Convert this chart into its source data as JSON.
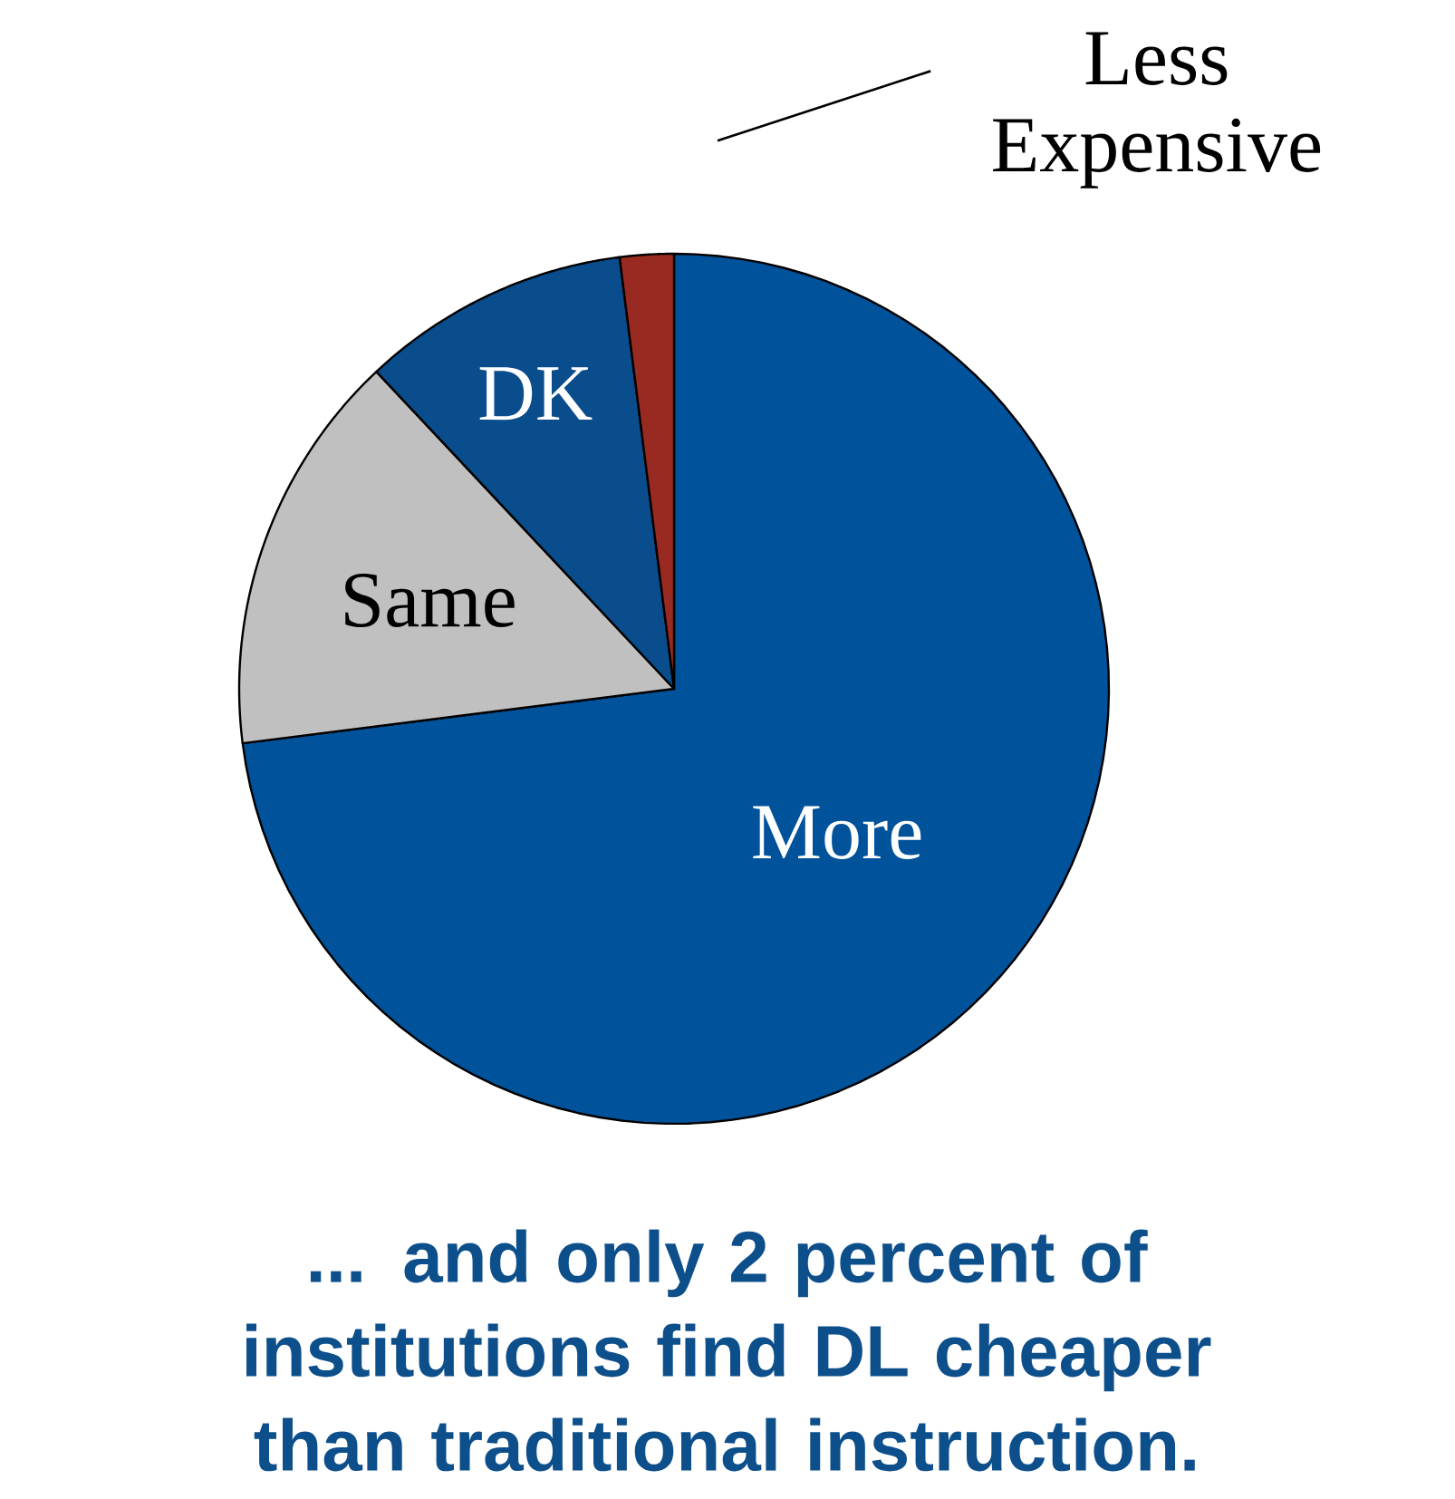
{
  "chart_data": {
    "type": "pie",
    "title": "... and only 2 percent of institutions find DL cheaper than traditional instruction.",
    "categories": [
      "More",
      "Same",
      "DK",
      "Less Expensive"
    ],
    "values": [
      73,
      15,
      10,
      2
    ],
    "colors": [
      "#00529b",
      "#c0c0c0",
      "#0a4d8c",
      "#992a22"
    ]
  }
}
